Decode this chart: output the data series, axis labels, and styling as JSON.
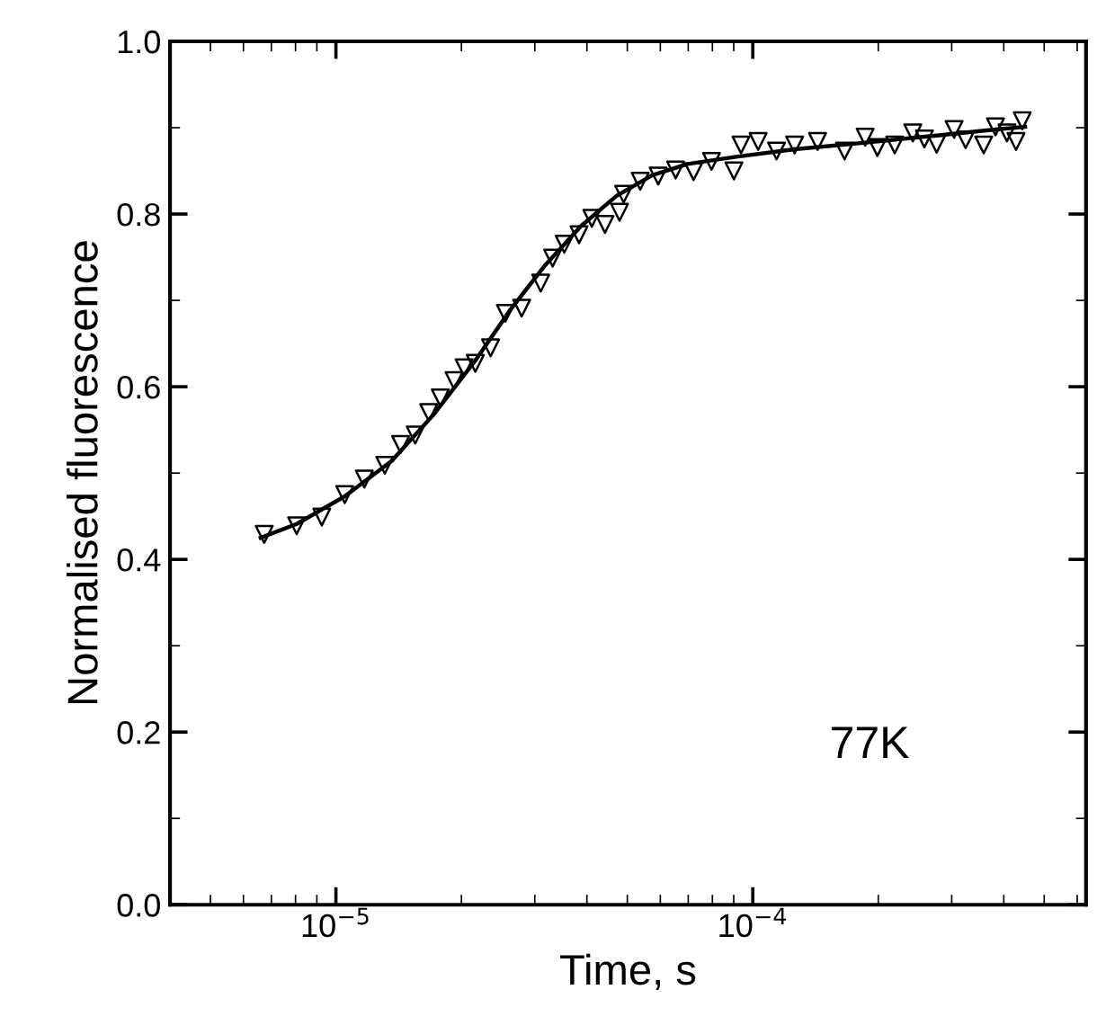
{
  "chart_data": {
    "type": "scatter",
    "xlabel": "Time, s",
    "ylabel": "Normalised fluorescence",
    "log": "x",
    "xlim": [
      4e-06,
      0.00063
    ],
    "ylim": [
      0,
      1.0
    ],
    "xticks": [
      {
        "value": 1e-05,
        "label": "10$^{−5}$"
      },
      {
        "value": 0.0001,
        "label": "10$^{−4}$"
      }
    ],
    "yticks": [
      {
        "value": 0,
        "label": "0.0"
      },
      {
        "value": 0.2,
        "label": "0.2"
      },
      {
        "value": 0.4,
        "label": "0.4"
      },
      {
        "value": 0.6,
        "label": "0.6"
      },
      {
        "value": 0.8,
        "label": "0.8"
      },
      {
        "value": 1.0,
        "label": "1.0"
      }
    ],
    "grid": false,
    "annotations": [
      "77K"
    ],
    "series": [
      {
        "color": "#000000",
        "marker": "triangle",
        "x": [
          6.73e-06,
          8.05e-06,
          9.25e-06,
          1.05e-05,
          1.17e-05,
          1.31e-05,
          1.43e-05,
          1.55e-05,
          1.67e-05,
          1.78e-05,
          1.92e-05,
          2.03e-05,
          2.16e-05,
          2.35e-05,
          2.55e-05,
          2.79e-05,
          3.1e-05,
          3.31e-05,
          3.53e-05,
          3.83e-05,
          4.11e-05,
          4.42e-05,
          4.79e-05,
          4.9e-05,
          5.37e-05,
          5.93e-05,
          6.53e-05,
          7.21e-05,
          7.96e-05,
          9.01e-05,
          9.37e-05,
          0.000103,
          0.000114,
          0.000126,
          0.000143,
          0.000166,
          0.000186,
          0.000199,
          0.000219,
          0.000242,
          0.000258,
          0.000276,
          0.000304,
          0.000324,
          0.000358,
          0.000382,
          0.000407,
          0.000428,
          0.000443
        ],
        "values": [
          0.429,
          0.439,
          0.449,
          0.475,
          0.493,
          0.509,
          0.533,
          0.544,
          0.57,
          0.587,
          0.607,
          0.622,
          0.627,
          0.645,
          0.685,
          0.691,
          0.72,
          0.749,
          0.765,
          0.776,
          0.795,
          0.788,
          0.802,
          0.823,
          0.838,
          0.844,
          0.851,
          0.849,
          0.861,
          0.85,
          0.88,
          0.884,
          0.873,
          0.88,
          0.884,
          0.873,
          0.889,
          0.877,
          0.88,
          0.894,
          0.887,
          0.881,
          0.898,
          0.886,
          0.88,
          0.901,
          0.894,
          0.884,
          0.908
        ]
      },
      {
        "type": "line",
        "color": "#000000",
        "line_style": "solid",
        "x": [
          6.6e-06,
          8.05e-06,
          1.05e-05,
          1.36e-05,
          1.71e-05,
          2.15e-05,
          2.62e-05,
          3.18e-05,
          3.87e-05,
          4.71e-05,
          5.74e-05,
          6.98e-05,
          9.04e-05,
          0.000126,
          0.000199,
          0.000276,
          0.000382,
          0.00045
        ],
        "values": [
          0.425,
          0.441,
          0.473,
          0.514,
          0.567,
          0.629,
          0.689,
          0.741,
          0.786,
          0.821,
          0.845,
          0.858,
          0.866,
          0.875,
          0.884,
          0.891,
          0.898,
          0.901
        ]
      }
    ]
  }
}
